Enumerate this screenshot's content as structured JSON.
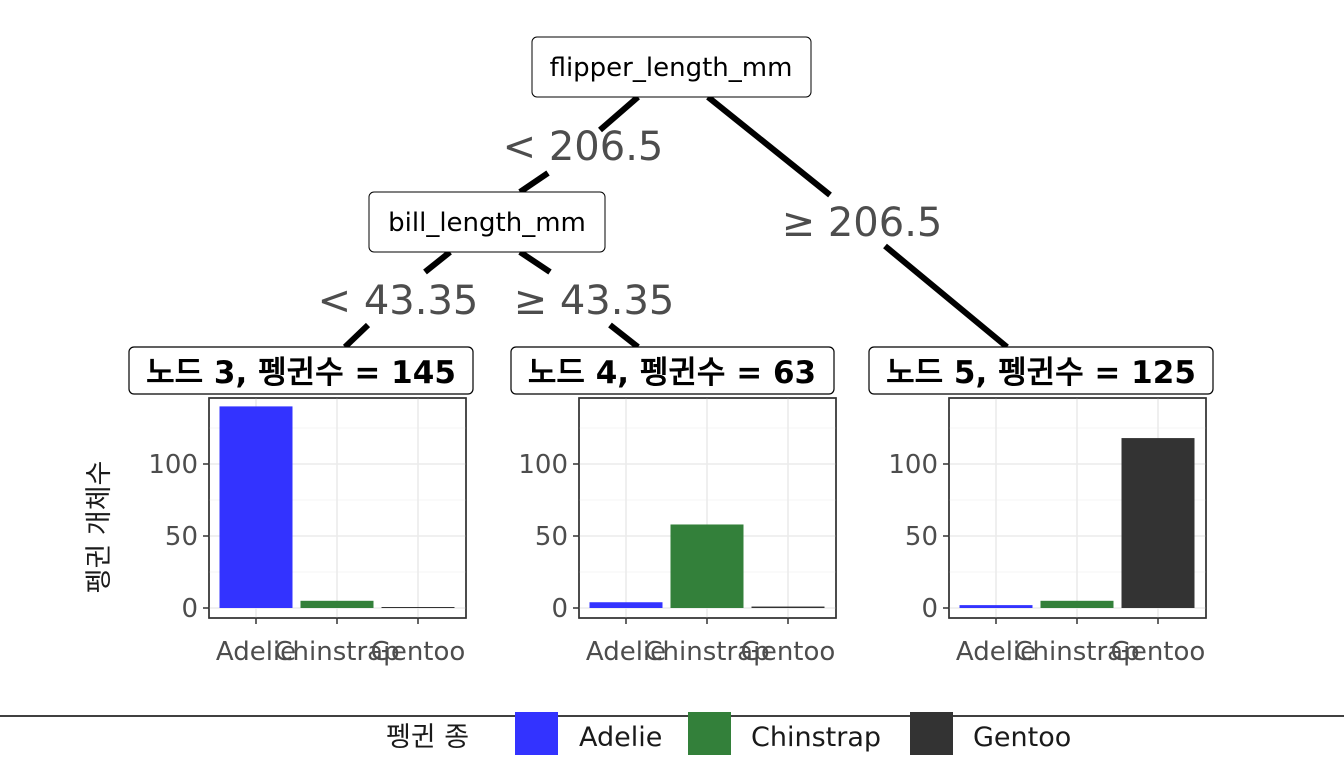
{
  "chart_data": {
    "type": "bar",
    "tree": {
      "root": {
        "variable": "flipper_length_mm",
        "left_rule": "< 206.5",
        "right_rule": "≥ 206.5"
      },
      "inner": {
        "variable": "bill_length_mm",
        "left_rule": "< 43.35",
        "right_rule": "≥ 43.35"
      }
    },
    "categories": [
      "Adelie",
      "Chinstrap",
      "Gentoo"
    ],
    "ylabel": "펭귄 개체수",
    "ylim": [
      0,
      140
    ],
    "yticks": [
      0,
      50,
      100
    ],
    "grid": true,
    "leaves": [
      {
        "title": "노드 3, 펭귄수 = 145",
        "values": [
          140,
          5,
          0
        ]
      },
      {
        "title": "노드 4, 펭귄수 = 63",
        "values": [
          4,
          58,
          1
        ]
      },
      {
        "title": "노드 5, 펭귄수 = 125",
        "values": [
          2,
          5,
          118
        ]
      }
    ],
    "colors": [
      "#3333ff",
      "#33803a",
      "#333333"
    ],
    "legend": {
      "title": "펭귄 종",
      "position": "bottom",
      "entries": [
        "Adelie",
        "Chinstrap",
        "Gentoo"
      ]
    }
  }
}
